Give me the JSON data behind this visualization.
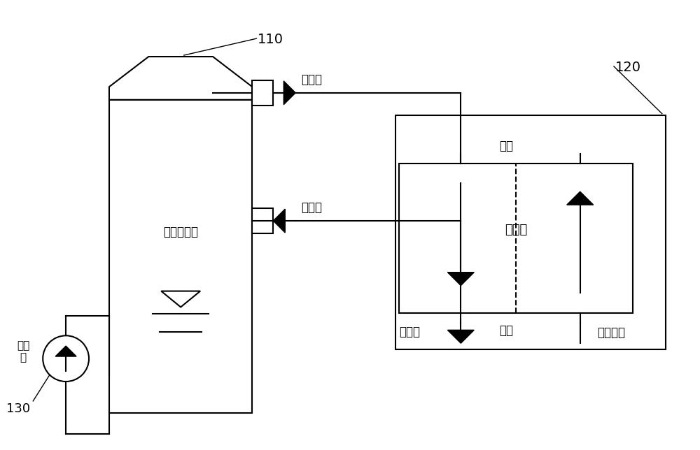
{
  "bg_color": "#ffffff",
  "lc": "#000000",
  "lw": 1.5,
  "label_110": "110",
  "label_120": "120",
  "label_130": "130",
  "text_tower": "脱硫吸收塔",
  "text_exchanger": "换热器",
  "text_pump_label": "循环\n泵",
  "text_clean": "净烟气",
  "text_raw": "原烟气",
  "text_cold": "冷端",
  "text_hot": "热端",
  "text_chimney": "去烟囱",
  "text_boiler": "来自锅炉",
  "figsize": [
    10.0,
    6.44
  ],
  "dpi": 100
}
